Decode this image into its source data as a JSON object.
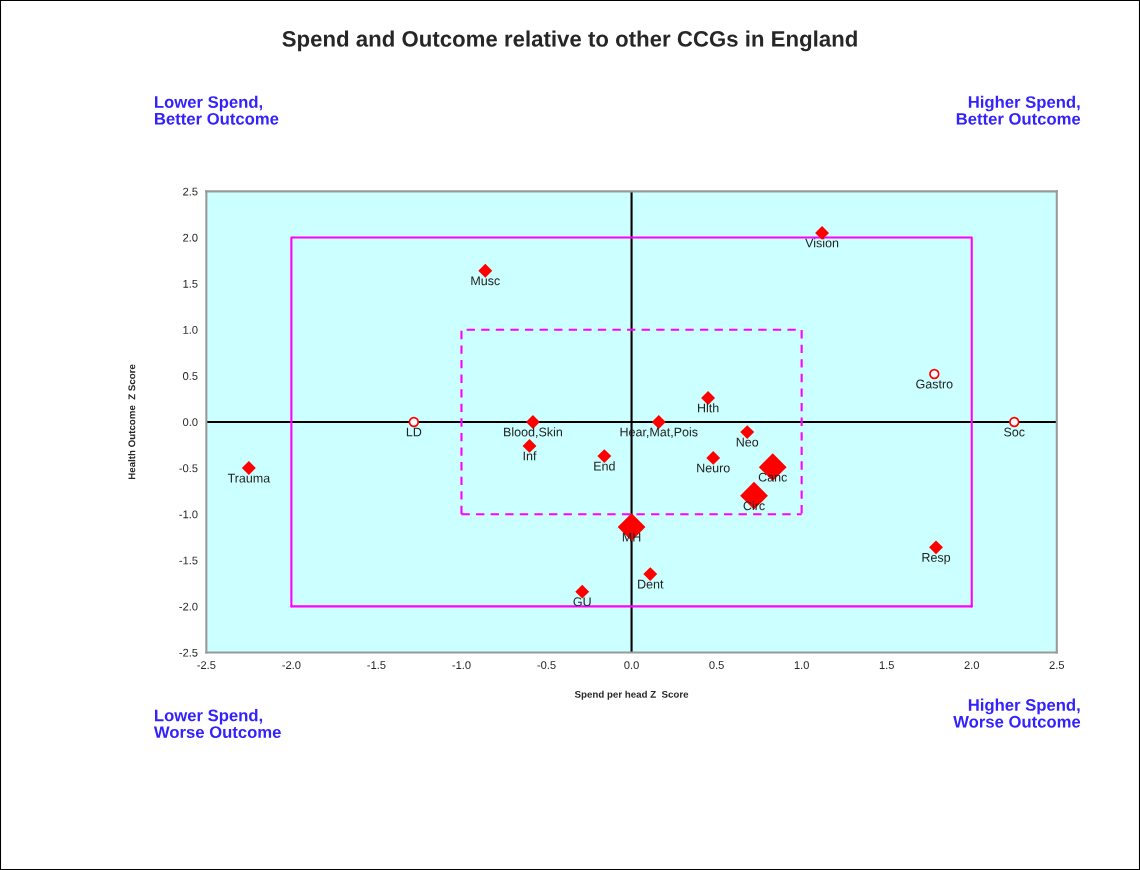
{
  "chart_data": {
    "type": "scatter",
    "title": "Spend and Outcome relative to other CCGs in England",
    "xlabel": "Spend per head Z  Score",
    "ylabel": "Health Outcome  Z Score",
    "xlim": [
      -2.5,
      2.5
    ],
    "ylim": [
      -2.5,
      2.5
    ],
    "xticks": [
      {
        "value": -2.5,
        "label": "-2.5"
      },
      {
        "value": -2,
        "label": "-2.0"
      },
      {
        "value": -1.5,
        "label": "-1.5"
      },
      {
        "value": -1,
        "label": "-1.0"
      },
      {
        "value": -0.5,
        "label": "-0.5"
      },
      {
        "value": 0,
        "label": "0.0"
      },
      {
        "value": 0.5,
        "label": "0.5"
      },
      {
        "value": 1,
        "label": "1.0"
      },
      {
        "value": 1.5,
        "label": "1.5"
      },
      {
        "value": 2,
        "label": "2.0"
      },
      {
        "value": 2.5,
        "label": "2.5"
      }
    ],
    "yticks": [
      {
        "value": -2.5,
        "label": "-2.5"
      },
      {
        "value": -2,
        "label": "-2.0"
      },
      {
        "value": -1.5,
        "label": "-1.5"
      },
      {
        "value": -1,
        "label": "-1.0"
      },
      {
        "value": -0.5,
        "label": "-0.5"
      },
      {
        "value": 0,
        "label": "0.0"
      },
      {
        "value": 0.5,
        "label": "0.5"
      },
      {
        "value": 1,
        "label": "1.0"
      },
      {
        "value": 1.5,
        "label": "1.5"
      },
      {
        "value": 2,
        "label": "2.0"
      },
      {
        "value": 2.5,
        "label": "2.5"
      }
    ],
    "grid": false,
    "legend": false,
    "series": [
      {
        "type": "bubble",
        "marker": "diamond",
        "color": "#ff0000",
        "x": [
          1.12,
          -0.86,
          0.45,
          -0.58,
          0.16,
          0.68,
          -0.6,
          -0.16,
          0.48,
          -2.25,
          0.83,
          0.72,
          0.0,
          0.11,
          1.79,
          -0.29
        ],
        "values": [
          2.05,
          1.64,
          0.26,
          0.0,
          0.0,
          -0.11,
          -0.26,
          -0.37,
          -0.39,
          -0.5,
          -0.49,
          -0.8,
          -1.14,
          -1.65,
          -1.36,
          -1.84
        ],
        "sizes": [
          0.25,
          0.25,
          0.25,
          0.25,
          0.25,
          0.25,
          0.25,
          0.25,
          0.25,
          0.25,
          1,
          1,
          1,
          0.25,
          0.25,
          0.25
        ]
      },
      {
        "marker": "circle",
        "color": "#ff0000",
        "x": [
          1.78,
          -1.28,
          2.25
        ],
        "values": [
          0.52,
          0.0,
          0.0
        ]
      },
      {
        "type": "line",
        "line_style": "solid",
        "color": "#000000",
        "x": [
          0,
          0
        ],
        "values": [
          -2.5,
          2.5
        ]
      },
      {
        "type": "line",
        "line_style": "solid",
        "color": "#000000",
        "x": [
          -2.5,
          2.5
        ],
        "values": [
          0,
          0
        ]
      },
      {
        "type": "line",
        "line_style": "solid",
        "color": "#ff00ff",
        "x": [
          -2,
          -2,
          2,
          2
        ],
        "values": [
          -2,
          2,
          2,
          -2
        ]
      },
      {
        "type": "line",
        "line_style": "solid",
        "color": "#ff00ff",
        "x": [
          -2,
          2
        ],
        "values": [
          -2,
          -2
        ]
      },
      {
        "type": "line",
        "line_style": "dashed",
        "color": "#ff00ff",
        "x": [
          -1,
          -1,
          1,
          1
        ],
        "values": [
          -1,
          1,
          1,
          -1
        ]
      },
      {
        "type": "line",
        "line_style": "dashed",
        "color": "#ff00ff",
        "x": [
          -1,
          1
        ],
        "values": [
          -1,
          -1
        ]
      }
    ],
    "annotations": [
      "Lower Spend,\nBetter Outcome",
      "Higher Spend,\nBetter Outcome",
      "Lower Spend,\nWorse Outcome",
      "Higher Spend,\nWorse Outcome",
      {
        "text": "Vision",
        "x": 1.12,
        "y": 2.05
      },
      {
        "text": "Musc",
        "x": -0.86,
        "y": 1.64
      },
      {
        "text": "Gastro",
        "x": 1.78,
        "y": 0.52
      },
      {
        "text": "Hlth",
        "x": 0.45,
        "y": 0.26
      },
      {
        "text": "LD",
        "x": -1.28,
        "y": 0.0
      },
      {
        "text": "Blood,Skin",
        "x": -0.58,
        "y": 0.0
      },
      {
        "text": "Hear,Mat,Pois",
        "x": 0.16,
        "y": 0.0
      },
      {
        "text": "Soc",
        "x": 2.25,
        "y": 0.0
      },
      {
        "text": "Neo",
        "x": 0.68,
        "y": -0.11
      },
      {
        "text": "Inf",
        "x": -0.6,
        "y": -0.26
      },
      {
        "text": "End",
        "x": -0.16,
        "y": -0.37
      },
      {
        "text": "Neuro",
        "x": 0.48,
        "y": -0.39
      },
      {
        "text": "Trauma",
        "x": -2.25,
        "y": -0.5
      },
      {
        "text": "Canc",
        "x": 0.83,
        "y": -0.49
      },
      {
        "text": "Circ",
        "x": 0.72,
        "y": -0.8
      },
      {
        "text": "MH",
        "x": 0.0,
        "y": -1.14
      },
      {
        "text": "Dent",
        "x": 0.11,
        "y": -1.65
      },
      {
        "text": "Resp",
        "x": 1.79,
        "y": -1.36
      },
      {
        "text": "GU",
        "x": -0.29,
        "y": -1.84
      }
    ]
  }
}
